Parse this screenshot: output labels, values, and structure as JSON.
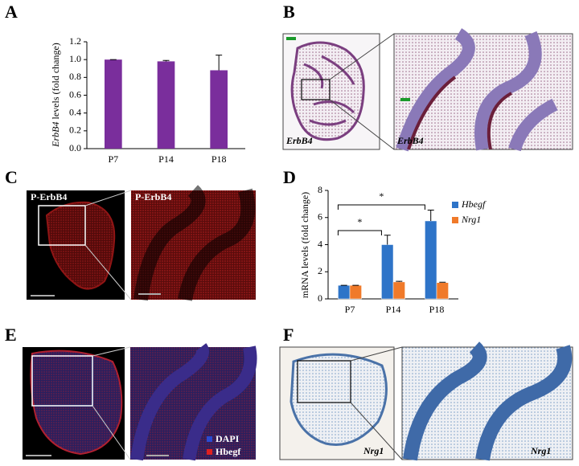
{
  "panels": {
    "letters": [
      "A",
      "B",
      "C",
      "D",
      "E",
      "F"
    ],
    "b_labels": [
      "ErbB4",
      "ErbB4"
    ],
    "c_labels": [
      "P-ErbB4",
      "P-ErbB4"
    ],
    "e_legend": [
      "DAPI",
      "Hbegf"
    ],
    "f_labels": [
      "Nrg1",
      "Nrg1"
    ]
  },
  "chart_data": [
    {
      "type": "bar",
      "ylabel_gene": "ErbB4",
      "ylabel": "levels (fold change)",
      "categories": [
        "P7",
        "P14",
        "P18"
      ],
      "values": [
        1.0,
        0.98,
        0.88
      ],
      "errors": [
        0,
        0.01,
        0.17
      ],
      "color": "#7a2e9c",
      "ylim": [
        0,
        1.2
      ],
      "yticks": [
        {
          "value": 0,
          "label": "0.0"
        },
        {
          "value": 0.2,
          "label": "0.2"
        },
        {
          "value": 0.4,
          "label": "0.4"
        },
        {
          "value": 0.6,
          "label": "0.6"
        },
        {
          "value": 0.8,
          "label": "0.8"
        },
        {
          "value": 1.0,
          "label": "1.0"
        },
        {
          "value": 1.2,
          "label": "1.2"
        }
      ]
    },
    {
      "type": "bar",
      "ylabel": "mRNA levels (fold change)",
      "categories": [
        "P7",
        "P14",
        "P18"
      ],
      "series": [
        {
          "name": "Hbegf",
          "color": "#2e74c8",
          "values": [
            1.0,
            4.0,
            5.75
          ],
          "errors": [
            0,
            0.7,
            0.8
          ]
        },
        {
          "name": "Nrg1",
          "color": "#f07a2a",
          "values": [
            1.0,
            1.25,
            1.2
          ],
          "errors": [
            0,
            0.05,
            0.03
          ]
        }
      ],
      "ylim": [
        0,
        8
      ],
      "yticks": [
        0,
        2,
        4,
        6,
        8
      ],
      "annotations": [
        "*",
        "*"
      ],
      "legend": "right"
    }
  ]
}
